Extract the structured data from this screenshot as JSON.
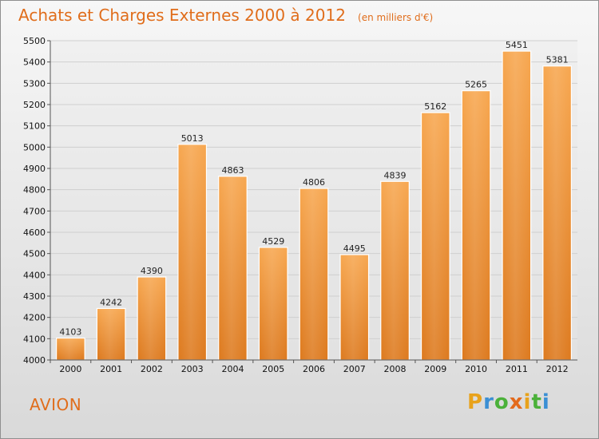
{
  "header": {
    "title": "Achats et Charges Externes 2000 à 2012",
    "subtitle": "(en milliers d'€)"
  },
  "footer": {
    "place": "AVION",
    "brand": "Proxiti"
  },
  "colors": {
    "title": "#e06d1b",
    "bar_top": "#f7a750",
    "bar_bottom": "#dd7a1f",
    "grid": "#cfcfcf",
    "brand_letters": [
      "#e8a21b",
      "#3b8fd4",
      "#4bb13a",
      "#e36a1c",
      "#e8a21b",
      "#4bb13a",
      "#3b8fd4"
    ]
  },
  "chart_data": {
    "type": "bar",
    "categories": [
      "2000",
      "2001",
      "2002",
      "2003",
      "2004",
      "2005",
      "2006",
      "2007",
      "2008",
      "2009",
      "2010",
      "2011",
      "2012"
    ],
    "values": [
      4103,
      4242,
      4390,
      5013,
      4863,
      4529,
      4806,
      4495,
      4839,
      5162,
      5265,
      5451,
      5381
    ],
    "title": "Achats et Charges Externes 2000 à 2012",
    "ylim": [
      4000,
      5500
    ],
    "yticks": [
      4000,
      4100,
      4200,
      4300,
      4400,
      4500,
      4600,
      4700,
      4800,
      4900,
      5000,
      5100,
      5200,
      5300,
      5400,
      5500
    ],
    "grid": true,
    "data_labels": true
  }
}
